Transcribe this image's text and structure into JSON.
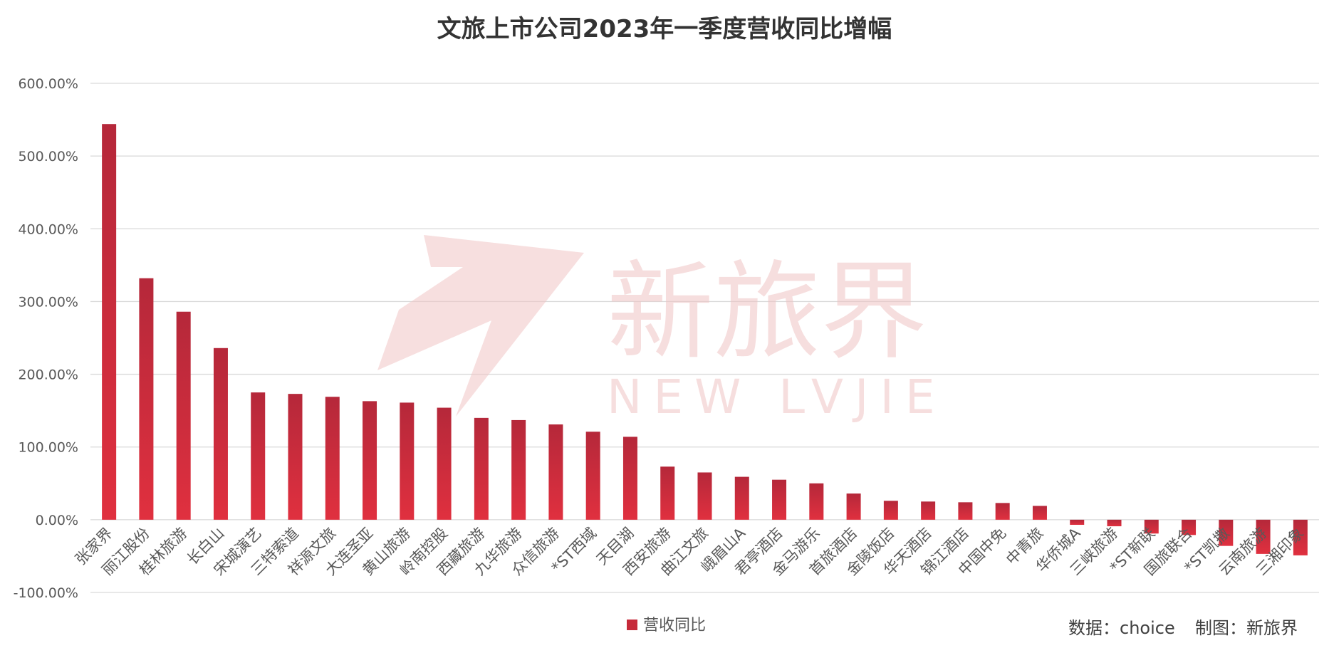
{
  "chart_data": {
    "type": "bar",
    "title": "文旅上市公司2023年一季度营收同比增幅",
    "xlabel": "",
    "ylabel": "",
    "ylim": [
      -100,
      600
    ],
    "yticks": [
      "600.00%",
      "500.00%",
      "400.00%",
      "300.00%",
      "200.00%",
      "100.00%",
      "0.00%",
      "-100.00%"
    ],
    "categories": [
      "张家界",
      "丽江股份",
      "桂林旅游",
      "长白山",
      "宋城演艺",
      "三特索道",
      "祥源文旅",
      "大连圣亚",
      "黄山旅游",
      "岭南控股",
      "西藏旅游",
      "九华旅游",
      "众信旅游",
      "*ST西域",
      "天目湖",
      "西安旅游",
      "曲江文旅",
      "峨眉山A",
      "君亭酒店",
      "金马游乐",
      "首旅酒店",
      "金陵饭店",
      "华天酒店",
      "锦江酒店",
      "中国中免",
      "中青旅",
      "华侨城A",
      "三峡旅游",
      "*ST新联",
      "国旅联合",
      "*ST凯撒",
      "云南旅游",
      "三湘印象"
    ],
    "series": [
      {
        "name": "营收同比",
        "values": [
          544,
          332,
          286,
          236,
          175,
          173,
          169,
          163,
          161,
          154,
          140,
          137,
          131,
          121,
          114,
          73,
          65,
          59,
          55,
          50,
          36,
          26,
          25,
          24,
          23,
          19,
          -7,
          -9,
          -19,
          -21,
          -36,
          -47,
          -49
        ]
      }
    ],
    "grid": true,
    "legend": "bottom-center"
  },
  "credit": {
    "source": "数据：choice",
    "author": "制图：新旅界"
  },
  "watermark": {
    "cn": "新旅界",
    "en": "NEW LVJIE"
  },
  "colors": {
    "bar_top": "#b5283a",
    "bar_bottom": "#e0303f",
    "legend": "#c62a3a"
  }
}
